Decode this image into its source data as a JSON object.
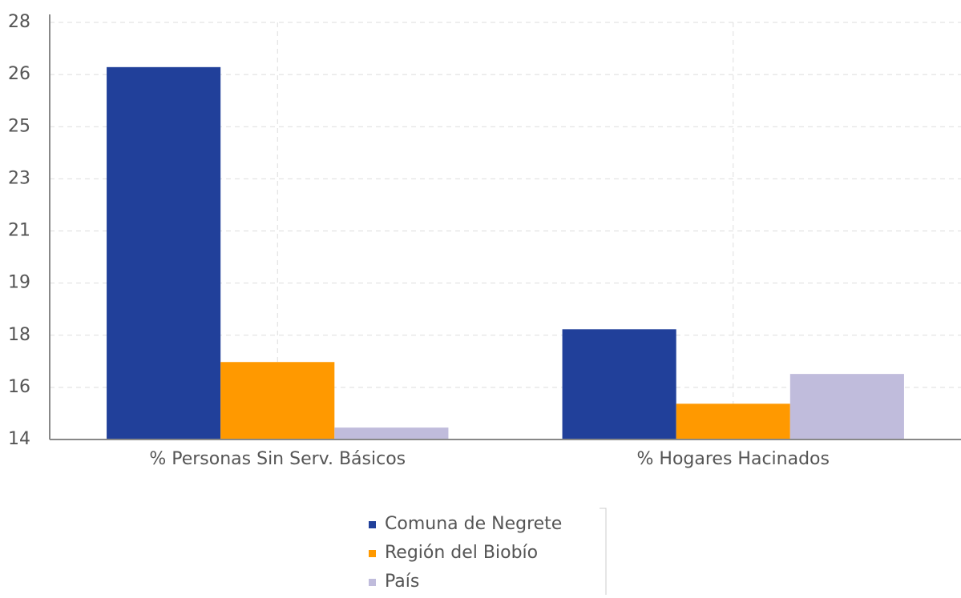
{
  "chart_data": {
    "type": "bar",
    "categories": [
      "% Personas Sin Serv. Básicos",
      "% Hogares Hacinados"
    ],
    "series": [
      {
        "name": "Comuna de Negrete",
        "color": "#21409a",
        "values": [
          26.5,
          17.7
        ]
      },
      {
        "name": "Región del Biobío",
        "color": "#ff9900",
        "values": [
          16.6,
          15.2
        ]
      },
      {
        "name": "País",
        "color": "#c0bcdc",
        "values": [
          14.4,
          16.2
        ]
      }
    ],
    "ylim": [
      14,
      28
    ],
    "yticks": [
      {
        "value": 14,
        "label": "14"
      },
      {
        "value": 15.75,
        "label": "16"
      },
      {
        "value": 17.5,
        "label": "18"
      },
      {
        "value": 19.25,
        "label": "19"
      },
      {
        "value": 21,
        "label": "21"
      },
      {
        "value": 22.75,
        "label": "23"
      },
      {
        "value": 24.5,
        "label": "25"
      },
      {
        "value": 26.25,
        "label": "26"
      },
      {
        "value": 28,
        "label": "28"
      }
    ],
    "grid": true
  }
}
